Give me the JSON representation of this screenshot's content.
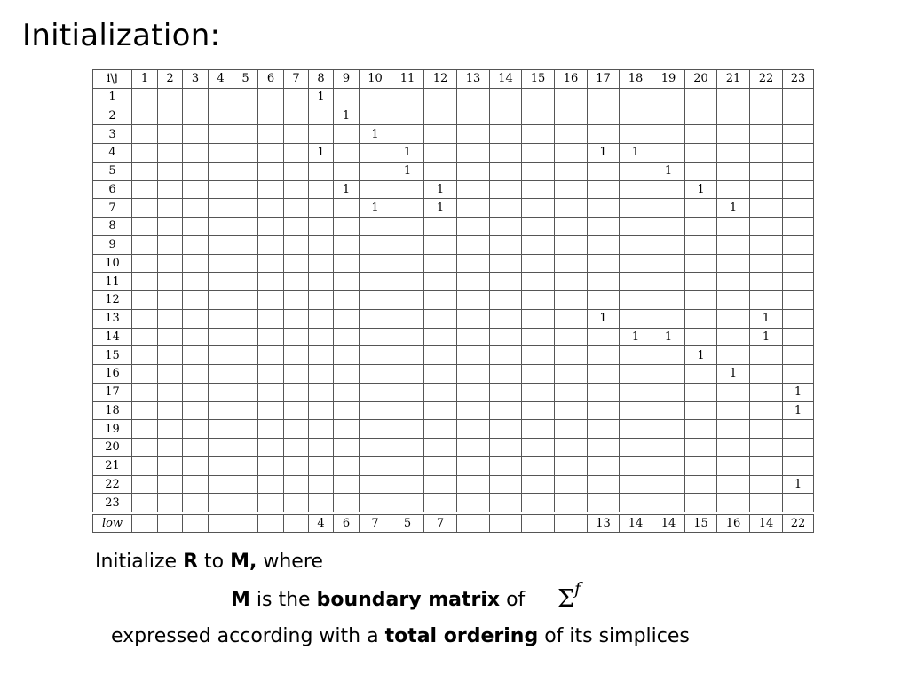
{
  "slide": {
    "title": "Initialization:"
  },
  "matrix": {
    "corner_label": "i\\j",
    "size": 23,
    "column_labels": [
      "1",
      "2",
      "3",
      "4",
      "5",
      "6",
      "7",
      "8",
      "9",
      "10",
      "11",
      "12",
      "13",
      "14",
      "15",
      "16",
      "17",
      "18",
      "19",
      "20",
      "21",
      "22",
      "23"
    ],
    "row_labels": [
      "1",
      "2",
      "3",
      "4",
      "5",
      "6",
      "7",
      "8",
      "9",
      "10",
      "11",
      "12",
      "13",
      "14",
      "15",
      "16",
      "17",
      "18",
      "19",
      "20",
      "21",
      "22",
      "23"
    ],
    "nonzero_entries": [
      {
        "row": 1,
        "col": 8,
        "value": "1"
      },
      {
        "row": 2,
        "col": 9,
        "value": "1"
      },
      {
        "row": 3,
        "col": 10,
        "value": "1"
      },
      {
        "row": 4,
        "col": 8,
        "value": "1"
      },
      {
        "row": 4,
        "col": 11,
        "value": "1"
      },
      {
        "row": 4,
        "col": 17,
        "value": "1"
      },
      {
        "row": 4,
        "col": 18,
        "value": "1"
      },
      {
        "row": 5,
        "col": 11,
        "value": "1"
      },
      {
        "row": 5,
        "col": 19,
        "value": "1"
      },
      {
        "row": 6,
        "col": 9,
        "value": "1"
      },
      {
        "row": 6,
        "col": 12,
        "value": "1"
      },
      {
        "row": 6,
        "col": 20,
        "value": "1"
      },
      {
        "row": 7,
        "col": 10,
        "value": "1"
      },
      {
        "row": 7,
        "col": 12,
        "value": "1"
      },
      {
        "row": 7,
        "col": 21,
        "value": "1"
      },
      {
        "row": 13,
        "col": 17,
        "value": "1"
      },
      {
        "row": 13,
        "col": 22,
        "value": "1"
      },
      {
        "row": 14,
        "col": 18,
        "value": "1"
      },
      {
        "row": 14,
        "col": 19,
        "value": "1"
      },
      {
        "row": 14,
        "col": 22,
        "value": "1"
      },
      {
        "row": 15,
        "col": 20,
        "value": "1"
      },
      {
        "row": 16,
        "col": 21,
        "value": "1"
      },
      {
        "row": 17,
        "col": 23,
        "value": "1"
      },
      {
        "row": 18,
        "col": 23,
        "value": "1"
      },
      {
        "row": 22,
        "col": 23,
        "value": "1"
      }
    ],
    "low_label": "low",
    "low_values": [
      "",
      "",
      "",
      "",
      "",
      "",
      "",
      "4",
      "6",
      "7",
      "5",
      "7",
      "",
      "",
      "",
      "",
      "13",
      "14",
      "14",
      "15",
      "16",
      "14",
      "22"
    ]
  },
  "caption": {
    "line1": [
      {
        "text": "Initialize ",
        "bold": false
      },
      {
        "text": "R",
        "bold": true
      },
      {
        "text": " to ",
        "bold": false
      },
      {
        "text": "M,",
        "bold": true
      },
      {
        "text": " where",
        "bold": false
      }
    ],
    "line2": [
      {
        "text": "M",
        "bold": true
      },
      {
        "text": " is the ",
        "bold": false
      },
      {
        "text": "boundary matrix",
        "bold": true
      },
      {
        "text": " of",
        "bold": false
      }
    ],
    "line2_symbol": "Σ",
    "line2_superscript": "f",
    "line3": [
      {
        "text": "expressed according with a ",
        "bold": false
      },
      {
        "text": "total ordering",
        "bold": true
      },
      {
        "text": " of its simplices",
        "bold": false
      }
    ]
  }
}
